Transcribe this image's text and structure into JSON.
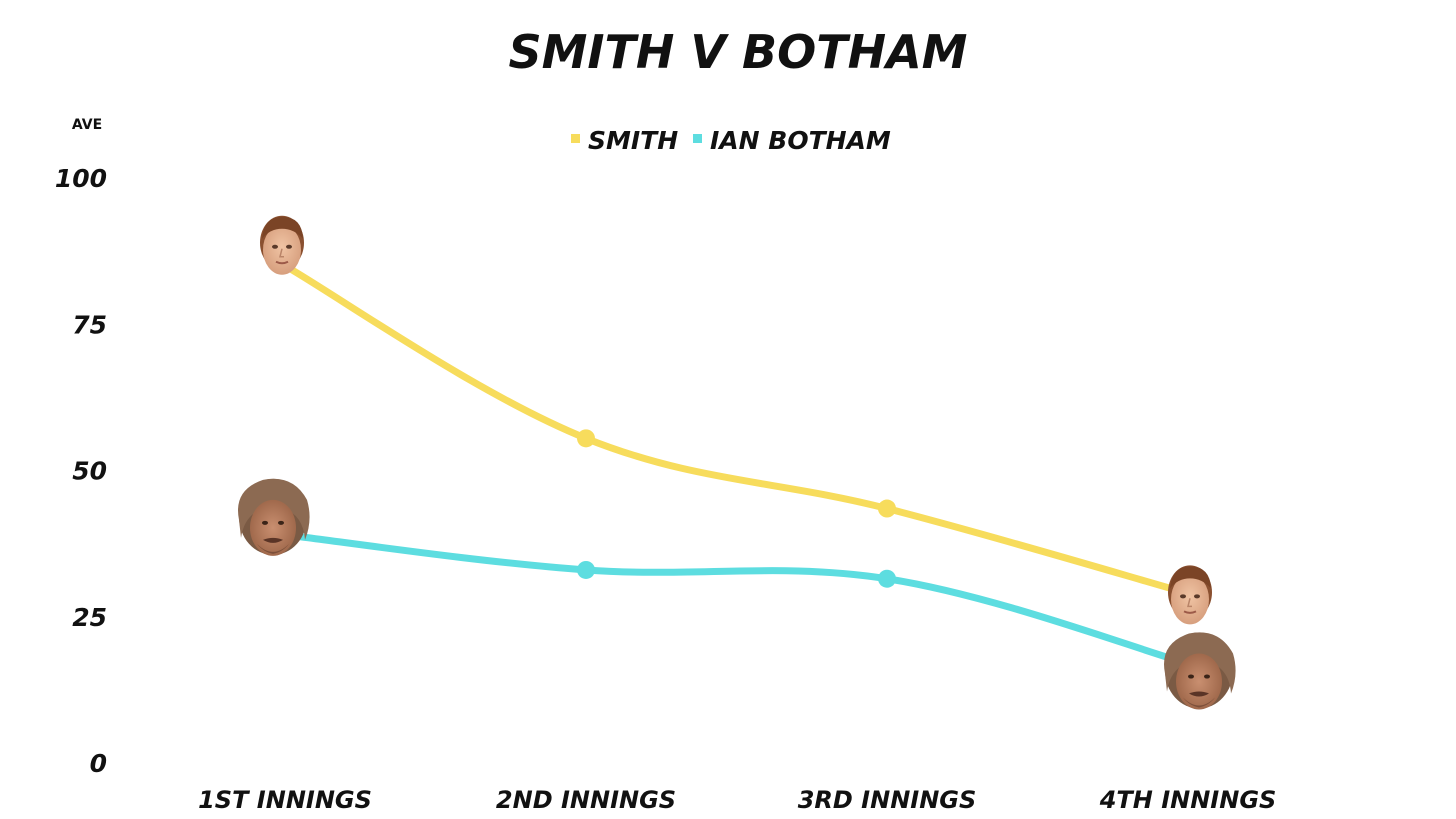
{
  "chart_data": {
    "type": "line",
    "title": "SMITH V BOTHAM",
    "ylabel": "AVE",
    "xlabel": "",
    "categories": [
      "1ST INNINGS",
      "2ND INNINGS",
      "3RD INNINGS",
      "4TH INNINGS"
    ],
    "yticks": [
      "0",
      "25",
      "50",
      "75",
      "100"
    ],
    "ylim": [
      0,
      100
    ],
    "grid": false,
    "legend_position": "top-center",
    "series": [
      {
        "name": "SMITH",
        "color": "#f7dc5c",
        "values": [
          85,
          55.5,
          43.5,
          29
        ],
        "end_markers": "smith-face-icon"
      },
      {
        "name": "IAN BOTHAM",
        "color": "#5ddde0",
        "values": [
          39,
          33,
          31.5,
          17
        ],
        "end_markers": "botham-face-icon"
      }
    ]
  }
}
